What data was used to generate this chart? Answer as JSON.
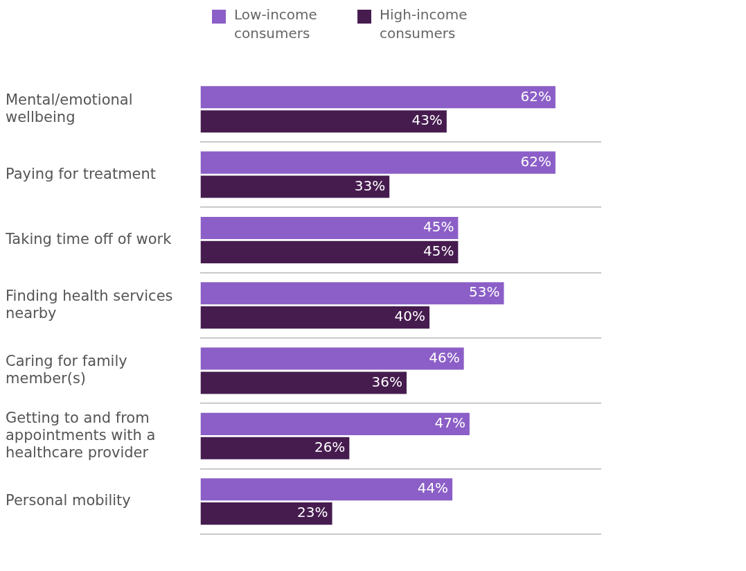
{
  "chart_data": {
    "type": "bar",
    "orientation": "horizontal",
    "categories": [
      "Mental/emotional wellbeing",
      "Paying for treatment",
      "Taking time off of work",
      "Finding health services nearby",
      "Caring for family member(s)",
      "Getting to and from appointments with a healthcare provider",
      "Personal mobility"
    ],
    "series": [
      {
        "name": "Low-income consumers",
        "color": "#8b5fc7",
        "values": [
          62,
          62,
          45,
          53,
          46,
          47,
          44
        ],
        "value_labels": [
          "62%",
          "62%",
          "45%",
          "53%",
          "46%",
          "47%",
          "44%"
        ]
      },
      {
        "name": "High-income consumers",
        "color": "#461c4f",
        "values": [
          43,
          33,
          45,
          40,
          36,
          26,
          23
        ],
        "value_labels": [
          "43%",
          "33%",
          "45%",
          "40%",
          "36%",
          "26%",
          "23%"
        ]
      }
    ],
    "grid": "y",
    "legend": "top left",
    "tick_labels": "y"
  }
}
